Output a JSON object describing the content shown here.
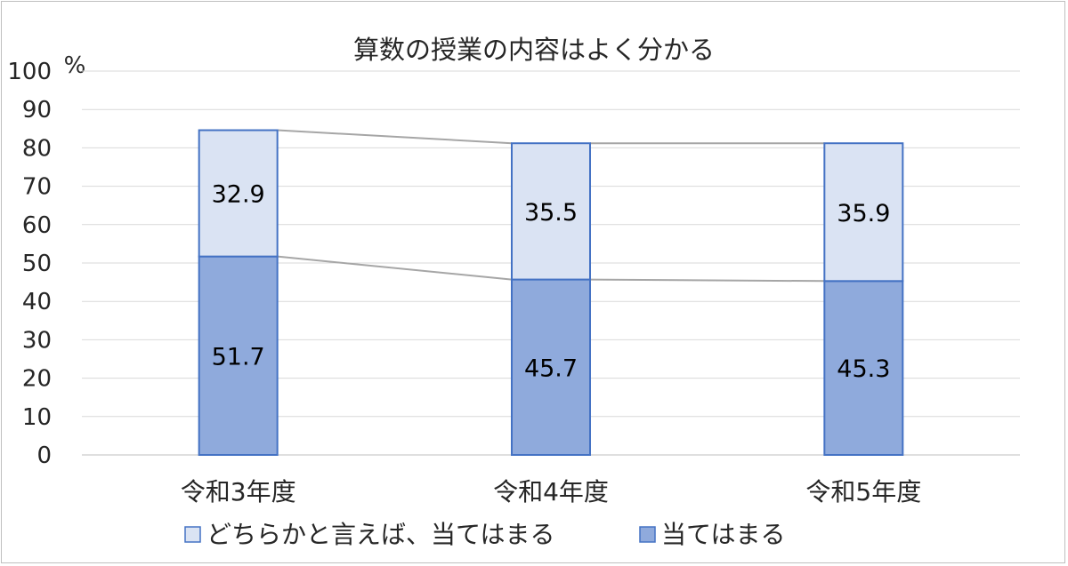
{
  "chart_data": {
    "type": "bar",
    "stacked": true,
    "title": "算数の授業の内容はよく分かる",
    "unit_label": "%",
    "categories": [
      "令和3年度",
      "令和4年度",
      "令和5年度"
    ],
    "series": [
      {
        "name": "当てはまる",
        "values": [
          51.7,
          45.7,
          45.3
        ],
        "color": "#8faadc"
      },
      {
        "name": "どちらかと言えば、当てはまる",
        "values": [
          32.9,
          35.5,
          35.9
        ],
        "color": "#dae3f3"
      }
    ],
    "ylim": [
      0,
      100
    ],
    "yticks": [
      "0",
      "10",
      "20",
      "30",
      "40",
      "50",
      "60",
      "70",
      "80",
      "90",
      "100"
    ],
    "grid": true,
    "series_lines": true,
    "legend_position": "bottom",
    "legend_order": [
      "どちらかと言えば、当てはまる",
      "当てはまる"
    ],
    "bar_border_color": "#4472c4"
  }
}
